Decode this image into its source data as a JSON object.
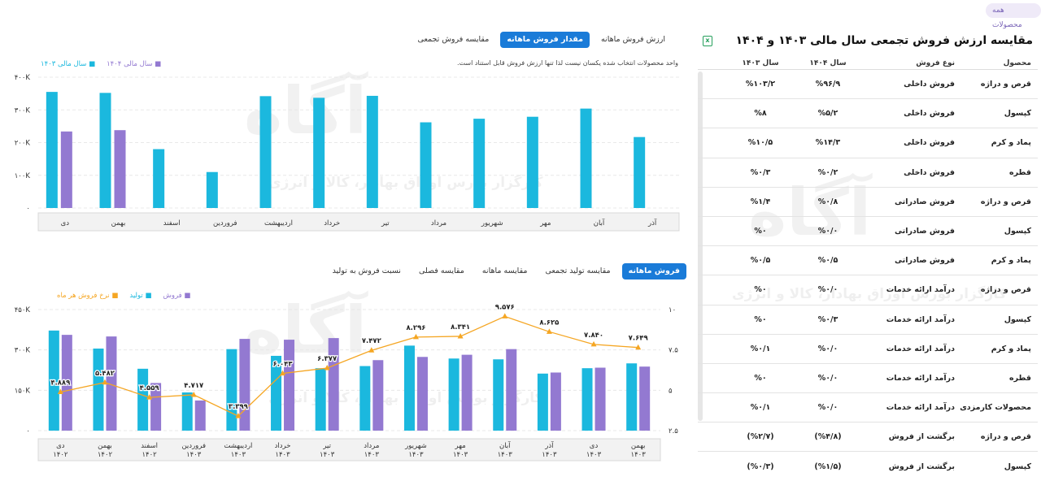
{
  "top_pill": "همه محصولات",
  "right": {
    "title": "مقایسه ارزش فروش تجمعی سال مالی ۱۴۰۳ و ۱۴۰۴",
    "headers": [
      "محصول",
      "نوع فروش",
      "سال ۱۴۰۴",
      "سال ۱۴۰۳"
    ],
    "rows": [
      [
        "قرص و دراژه",
        "فروش داخلی",
        "%۹۶/۹",
        "%۱۰۳/۲"
      ],
      [
        "کپسول",
        "فروش داخلی",
        "%۵/۲",
        "%۸"
      ],
      [
        "پماد و کرم",
        "فروش داخلی",
        "%۱۴/۳",
        "%۱۰/۵"
      ],
      [
        "قطره",
        "فروش داخلی",
        "%۰/۲",
        "%۰/۳"
      ],
      [
        "قرص و دراژه",
        "فروش صادراتی",
        "%۰/۸",
        "%۱/۴"
      ],
      [
        "کپسول",
        "فروش صادراتی",
        "%۰/۰",
        "%۰"
      ],
      [
        "پماد و کرم",
        "فروش صادراتی",
        "%۰/۵",
        "%۰/۵"
      ],
      [
        "قرص و دراژه",
        "درآمد ارائه خدمات",
        "%۰/۰",
        "%۰"
      ],
      [
        "کپسول",
        "درآمد ارائه خدمات",
        "%۰/۳",
        "%۰"
      ],
      [
        "پماد و کرم",
        "درآمد ارائه خدمات",
        "%۰/۰",
        "%۰/۱"
      ],
      [
        "قطره",
        "درآمد ارائه خدمات",
        "%۰/۰",
        "%۰"
      ],
      [
        "محصولات کارمزدی",
        "درآمد ارائه خدمات",
        "%۰/۰",
        "%۰/۱"
      ],
      [
        "قرص و دراژه",
        "برگشت از فروش",
        "(%۴/۸)",
        "(%۲/۷)"
      ],
      [
        "کپسول",
        "برگشت از فروش",
        "(%۱/۵)",
        "(%۰/۳)"
      ]
    ]
  },
  "top_tabs": [
    "ارزش فروش ماهانه",
    "مقدار فروش ماهانه",
    "مقایسه فروش تجمعی"
  ],
  "top_note": "واحد محصولات انتخاب شده یکسان نیست لذا تنها ارزش فروش قابل استناد است.",
  "bottom_tabs": [
    "فروش ماهانه",
    "مقایسه تولید تجمعی",
    "مقایسه ماهانه",
    "مقایسه فصلی",
    "نسبت فروش به تولید"
  ],
  "watermark": {
    "brand": "آگاه",
    "caption": "کارگزار بورس اوراق بهادار، کالا و انرژی"
  },
  "chart_data": [
    {
      "type": "bar",
      "categories": [
        "دی",
        "بهمن",
        "اسفند",
        "فروردین",
        "اردیبهشت",
        "خرداد",
        "تیر",
        "مرداد",
        "شهریور",
        "مهر",
        "آبان",
        "آذر"
      ],
      "series": [
        {
          "name": "سال مالی ۱۴۰۳",
          "color": "#1bb8de",
          "values": [
            355,
            352,
            180,
            110,
            342,
            337,
            343,
            262,
            273,
            279,
            304,
            217
          ]
        },
        {
          "name": "سال مالی ۱۴۰۴",
          "color": "#9379d1",
          "values": [
            234,
            238,
            null,
            null,
            null,
            null,
            null,
            null,
            null,
            null,
            null,
            null
          ]
        }
      ],
      "y_ticks": [
        "۰",
        "۱۰۰K",
        "۲۰۰K",
        "۳۰۰K",
        "۴۰۰K"
      ],
      "ylim": [
        0,
        400
      ],
      "legend": "top-left",
      "grid": true
    },
    {
      "type": "bar",
      "categories": [
        "دی\n۱۴۰۲",
        "بهمن\n۱۴۰۲",
        "اسفند\n۱۴۰۲",
        "فروردین\n۱۴۰۳",
        "اردیبهشت\n۱۴۰۳",
        "خرداد\n۱۴۰۳",
        "تیر\n۱۴۰۳",
        "مرداد\n۱۴۰۳",
        "شهریور\n۱۴۰۳",
        "مهر\n۱۴۰۳",
        "آبان\n۱۴۰۳",
        "آذر\n۱۴۰۳",
        "دی\n۱۴۰۳",
        "بهمن\n۱۴۰۳"
      ],
      "series": [
        {
          "name": "تولید",
          "color": "#1bb8de",
          "values": [
            372,
            305,
            230,
            142,
            303,
            278,
            232,
            240,
            316,
            268,
            265,
            212,
            232,
            250
          ]
        },
        {
          "name": "فروش",
          "color": "#9379d1",
          "values": [
            356,
            350,
            177,
            112,
            341,
            338,
            344,
            262,
            274,
            282,
            303,
            216,
            234,
            238
          ]
        }
      ],
      "line": {
        "name": "نرخ فروش هر ماه",
        "color": "#f5a623",
        "values": [
          4.889,
          5.482,
          4.559,
          4.717,
          3.399,
          6.043,
          6.377,
          7.472,
          8.296,
          8.341,
          9.576,
          8.625,
          7.84,
          7.649
        ],
        "labels": [
          "۴.۸۸۹",
          "۵.۴۸۲",
          "۴.۵۵۹",
          "۴.۷۱۷",
          "۳.۳۹۹",
          "۶.۰۴۳",
          "۶.۳۷۷",
          "۷.۴۷۲",
          "۸.۲۹۶",
          "۸.۳۴۱",
          "۹.۵۷۶",
          "۸.۶۲۵",
          "۷.۸۴۰",
          "۷.۶۴۹"
        ]
      },
      "y_ticks_left": [
        "۰",
        "۱۵۰K",
        "۳۰۰K",
        "۴۵۰K"
      ],
      "ylim_left": [
        0,
        450
      ],
      "y_ticks_right": [
        "۲.۵",
        "۵",
        "۷.۵",
        "۱۰"
      ],
      "ylim_right": [
        2.5,
        10
      ],
      "legend": "top-left",
      "grid": true
    }
  ]
}
